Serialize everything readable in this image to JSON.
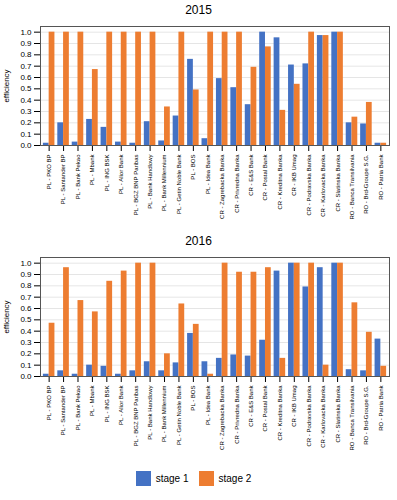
{
  "chart_data": [
    {
      "type": "bar",
      "title": "2015",
      "categories": [
        "PL - PKO BP",
        "PL - Santander BP",
        "PL - Bank Pekao",
        "PL - Mbank",
        "PL - ING BSK",
        "PL - Alior Bank",
        "PL - BGZ BNP Paribas",
        "PL - Bank Handlowy",
        "PL - Bank Millennium",
        "PL - Getin Noble Bank",
        "PL - BOS",
        "PL - Idea Bank",
        "CR - Zagrebacka Banka",
        "CR - Privredna Banka",
        "CR - E&S Bank",
        "CR - Postal Bank",
        "CR - Kreditna Banka",
        "CR - IKB Umag",
        "CR - Podravska Banka",
        "CR - Karlovacka Banka",
        "CR - Slatinska Banka",
        "RO - Banca Transilvania",
        "RO - Brd-Groupe S.G.",
        "RO - Patria Bank"
      ],
      "series": [
        {
          "name": "stage 1",
          "color": "#4472c4",
          "values": [
            0.02,
            0.2,
            0.03,
            0.23,
            0.16,
            0.03,
            0.02,
            0.21,
            0.04,
            0.26,
            0.76,
            0.06,
            0.59,
            0.51,
            0.36,
            1.0,
            0.95,
            0.71,
            0.72,
            0.97,
            1.0,
            0.2,
            0.19,
            0.02
          ]
        },
        {
          "name": "stage 2",
          "color": "#ed7d31",
          "values": [
            1.0,
            1.0,
            1.0,
            0.67,
            1.0,
            1.0,
            1.0,
            1.0,
            0.34,
            1.0,
            0.49,
            1.0,
            1.0,
            1.0,
            0.69,
            0.87,
            0.31,
            0.54,
            1.0,
            0.97,
            1.0,
            0.25,
            0.38,
            0.02
          ]
        }
      ],
      "ylabel": "efficiency",
      "ylim": [
        0,
        1.05
      ],
      "yticks": [
        {
          "value": 0,
          "label": "0.0"
        },
        0.1,
        0.2,
        0.3,
        0.4,
        0.5,
        0.6,
        0.7,
        0.8,
        0.9,
        {
          "value": 1,
          "label": "1.0"
        }
      ],
      "grid": true
    },
    {
      "type": "bar",
      "title": "2016",
      "categories": [
        "PL - PKO BP",
        "PL - Santander BP",
        "PL - Bank Pekao",
        "PL - Mbank",
        "PL - ING BSK",
        "PL - Alior Bank",
        "PL - BGZ BNP Paribas",
        "PL - Bank Handlowy",
        "PL - Bank Millennium",
        "PL - Getin Noble Bank",
        "PL - BOS",
        "PL - Idea Bank",
        "CR - Zagrebacka Banka",
        "CR - Privredna Banka",
        "CR - E&S Bank",
        "CR - Postal Bank",
        "CR - Kreditna Banka",
        "CR - IKB Umag",
        "CR - Podravska Banka",
        "CR - Karlovacka Banka",
        "CR - Slatinska Banka",
        "RO - Banca Transilvania",
        "RO - Brd-Groupe S.G.",
        "RO - Patria Bank"
      ],
      "series": [
        {
          "name": "stage 1",
          "color": "#4472c4",
          "values": [
            0.02,
            0.05,
            0.02,
            0.1,
            0.09,
            0.02,
            0.05,
            0.13,
            0.05,
            0.12,
            0.38,
            0.13,
            0.16,
            0.19,
            0.18,
            0.32,
            0.93,
            1.0,
            0.79,
            0.96,
            1.0,
            0.06,
            0.05,
            0.33
          ]
        },
        {
          "name": "stage 2",
          "color": "#ed7d31",
          "values": [
            0.47,
            0.96,
            0.67,
            0.57,
            0.84,
            0.93,
            1.0,
            1.0,
            0.2,
            0.64,
            0.46,
            0.02,
            1.0,
            0.92,
            0.92,
            0.96,
            0.16,
            1.0,
            1.0,
            0.1,
            1.0,
            0.65,
            0.39,
            0.09
          ]
        }
      ],
      "ylabel": "efficiency",
      "ylim": [
        0,
        1.05
      ],
      "yticks": [
        {
          "value": 0,
          "label": "0.0"
        },
        0.1,
        0.2,
        0.3,
        0.4,
        0.5,
        0.6,
        0.7,
        0.8,
        0.9,
        {
          "value": 1,
          "label": "1.0"
        }
      ],
      "grid": true,
      "legend": "bottom"
    }
  ]
}
